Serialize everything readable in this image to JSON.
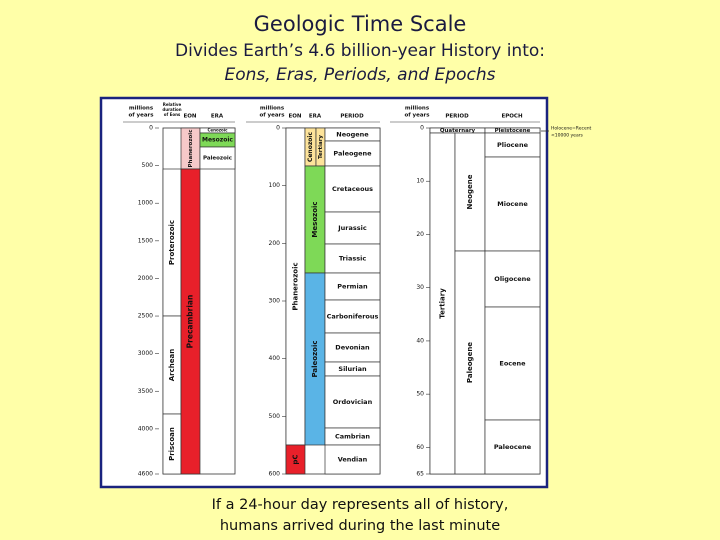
{
  "title": "Geologic Time Scale",
  "subtitle": "Divides Earth’s 4.6 billion-year History into:",
  "subtitle2": "Eons, Eras, Periods, and Epochs",
  "caption": [
    "If a 24-hour day represents all of history,",
    "humans arrived during the last minute"
  ],
  "panels": [
    {
      "axis_label": [
        "millions",
        "of years"
      ],
      "ticks": [
        0,
        500,
        1000,
        1500,
        2000,
        2500,
        3000,
        3500,
        4000,
        4600
      ],
      "headers": [
        "Relative",
        "duration",
        "of Eons",
        "EON",
        "ERA"
      ],
      "units": [
        "Proterozoic",
        "Archean",
        "Priscoan",
        "Phanerozoic",
        "Precambrian",
        "Cenozoic",
        "Mesozoic",
        "Paleozoic"
      ]
    },
    {
      "axis_label": [
        "millions",
        "of years"
      ],
      "ticks": [
        0,
        100,
        200,
        300,
        400,
        500,
        600
      ],
      "headers": [
        "EON",
        "ERA",
        "PERIOD"
      ],
      "units": [
        "Phanerozoic",
        "pC",
        "Cenozoic",
        "Tertiary",
        "Mesozoic",
        "Paleozoic",
        "Neogene",
        "Paleogene",
        "Cretaceous",
        "Jurassic",
        "Triassic",
        "Permian",
        "Carboniferous",
        "Devonian",
        "Silurian",
        "Ordovician",
        "Cambrian",
        "Vendian"
      ]
    },
    {
      "axis_label": [
        "millions",
        "of years"
      ],
      "ticks": [
        0,
        10,
        20,
        30,
        40,
        50,
        60,
        65
      ],
      "headers": [
        "PERIOD",
        "EPOCH"
      ],
      "units": [
        "Quaternary",
        "Pleistocene",
        "Tertiary",
        "Neogene",
        "Paleogene",
        "Pliocene",
        "Miocene",
        "Oligocene",
        "Eocene",
        "Paleocene"
      ],
      "note": [
        "Holocene=Recent",
        "<10000 years"
      ]
    }
  ]
}
